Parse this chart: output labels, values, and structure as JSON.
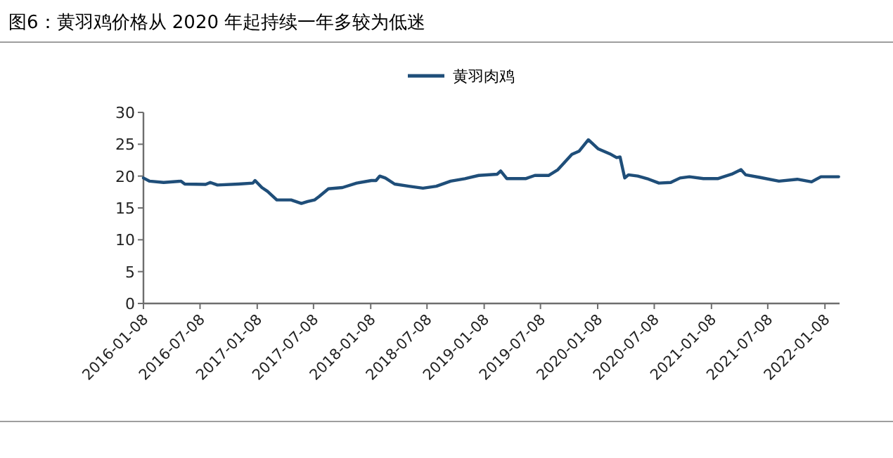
{
  "chart_data": {
    "type": "line",
    "title": "图6：黄羽鸡价格从 2020 年起持续一年多较为低迷",
    "x": [
      "2016-01-08",
      "2016-01-28",
      "2016-03-13",
      "2016-05-08",
      "2016-05-20",
      "2016-07-26",
      "2016-08-10",
      "2016-09-02",
      "2016-11-09",
      "2016-12-25",
      "2017-01-01",
      "2017-01-23",
      "2017-02-10",
      "2017-03-12",
      "2017-04-27",
      "2017-05-30",
      "2017-06-19",
      "2017-07-11",
      "2017-07-26",
      "2017-08-25",
      "2017-10-09",
      "2017-11-24",
      "2018-01-10",
      "2018-01-25",
      "2018-02-06",
      "2018-02-24",
      "2018-03-26",
      "2018-05-11",
      "2018-06-25",
      "2018-08-07",
      "2018-09-22",
      "2018-11-07",
      "2018-12-21",
      "2019-02-19",
      "2019-03-02",
      "2019-03-22",
      "2019-05-21",
      "2019-06-20",
      "2019-08-03",
      "2019-09-02",
      "2019-10-17",
      "2019-11-09",
      "2019-12-09",
      "2020-01-09",
      "2020-02-16",
      "2020-03-09",
      "2020-03-20",
      "2020-04-04",
      "2020-04-16",
      "2020-05-16",
      "2020-06-15",
      "2020-07-23",
      "2020-08-30",
      "2020-09-29",
      "2020-10-29",
      "2020-12-13",
      "2021-01-28",
      "2021-03-14",
      "2021-04-13",
      "2021-04-28",
      "2021-06-12",
      "2021-08-13",
      "2021-10-11",
      "2021-11-26",
      "2021-12-26",
      "2022-02-21"
    ],
    "series": [
      {
        "name": "黄羽肉鸡",
        "color": "#1f4e79",
        "values": [
          19.7,
          19.2,
          19.0,
          19.2,
          18.75,
          18.7,
          19.0,
          18.6,
          18.75,
          18.9,
          19.3,
          18.2,
          17.6,
          16.25,
          16.25,
          15.7,
          16.0,
          16.25,
          16.8,
          18.0,
          18.2,
          18.9,
          19.3,
          19.3,
          20.0,
          19.7,
          18.75,
          18.4,
          18.1,
          18.4,
          19.2,
          19.6,
          20.1,
          20.3,
          20.8,
          19.6,
          19.6,
          20.1,
          20.1,
          21.0,
          23.4,
          23.9,
          25.7,
          24.3,
          23.5,
          22.9,
          23.0,
          19.7,
          20.2,
          20.0,
          19.6,
          18.9,
          19.0,
          19.7,
          19.9,
          19.6,
          19.6,
          20.3,
          21.0,
          20.2,
          19.8,
          19.2,
          19.5,
          19.1,
          19.9,
          19.9
        ]
      }
    ],
    "xlim": [
      "2016-01-08",
      "2022-02-24"
    ],
    "xticks": [
      "2016-01-08",
      "2016-07-08",
      "2017-01-08",
      "2017-07-08",
      "2018-01-08",
      "2018-07-08",
      "2019-01-08",
      "2019-07-08",
      "2020-01-08",
      "2020-07-08",
      "2021-01-08",
      "2021-07-08",
      "2022-01-08"
    ],
    "ylim": [
      0,
      30
    ],
    "yticks": [
      0,
      5,
      10,
      15,
      20,
      25,
      30
    ],
    "legend": "top",
    "marker": "none",
    "line_style": "solid"
  }
}
